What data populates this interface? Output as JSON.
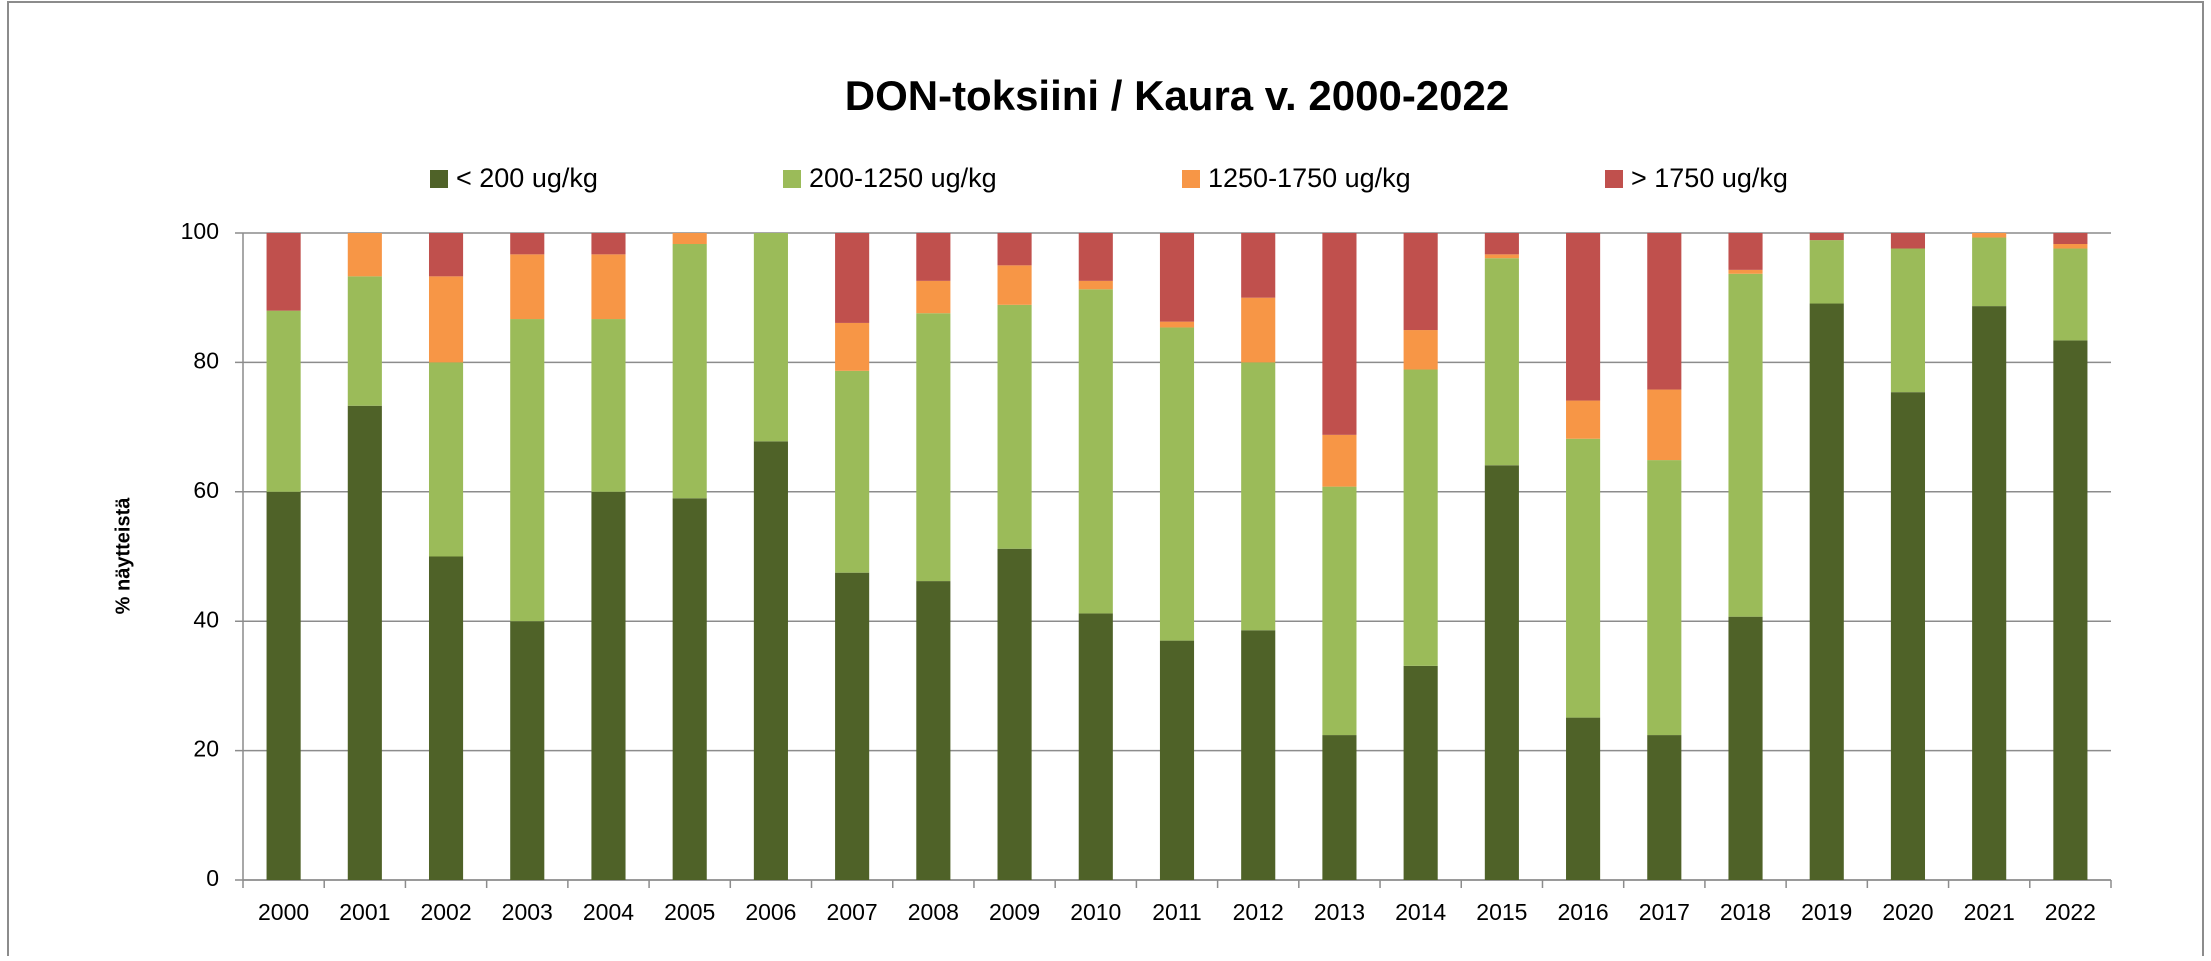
{
  "chart_data": {
    "type": "stacked_bar",
    "title": "DON-toksiini / Kaura v. 2000-2022",
    "y_label": "% näytteistä",
    "categories": [
      "2000",
      "2001",
      "2002",
      "2003",
      "2004",
      "2005",
      "2006",
      "2007",
      "2008",
      "2009",
      "2010",
      "2011",
      "2012",
      "2013",
      "2014",
      "2015",
      "2016",
      "2017",
      "2018",
      "2019",
      "2020",
      "2021",
      "2022"
    ],
    "series": [
      {
        "name": "< 200 ug/kg",
        "color": "#4f6228",
        "values": [
          60,
          73.3,
          50,
          40,
          60,
          59,
          67.8,
          47.5,
          46.2,
          51.2,
          41.2,
          37,
          38.6,
          22.4,
          33.1,
          64.1,
          25.1,
          22.4,
          40.7,
          89.1,
          75.4,
          88.7,
          83.4
        ]
      },
      {
        "name": "200-1250 ug/kg",
        "color": "#9bbb59",
        "values": [
          28,
          20,
          30,
          46.7,
          26.7,
          39.3,
          32.2,
          31.2,
          41.4,
          37.7,
          50.1,
          48.4,
          41.4,
          38.4,
          45.8,
          32,
          43.1,
          42.5,
          53,
          9.8,
          22.2,
          10.6,
          14.2
        ]
      },
      {
        "name": "1250-1750 ug/kg",
        "color": "#f79646",
        "values": [
          0,
          6.7,
          13.3,
          10,
          10,
          1.7,
          0,
          7.4,
          5,
          6.1,
          1.3,
          0.9,
          10,
          8,
          6.1,
          0.6,
          5.9,
          10.9,
          0.6,
          0,
          0,
          0.7,
          0.7
        ]
      },
      {
        "name": "> 1750 ug/kg",
        "color": "#c0504d",
        "values": [
          12,
          0,
          6.7,
          3.3,
          3.3,
          0,
          0,
          13.9,
          7.4,
          5,
          7.4,
          13.7,
          10,
          31.2,
          15,
          3.3,
          25.9,
          24.2,
          5.7,
          1.1,
          2.4,
          0,
          1.7
        ]
      }
    ],
    "ylim": [
      0,
      100
    ],
    "yticks": [
      0,
      20,
      40,
      60,
      80,
      100
    ],
    "grid": true,
    "legend": "top"
  }
}
